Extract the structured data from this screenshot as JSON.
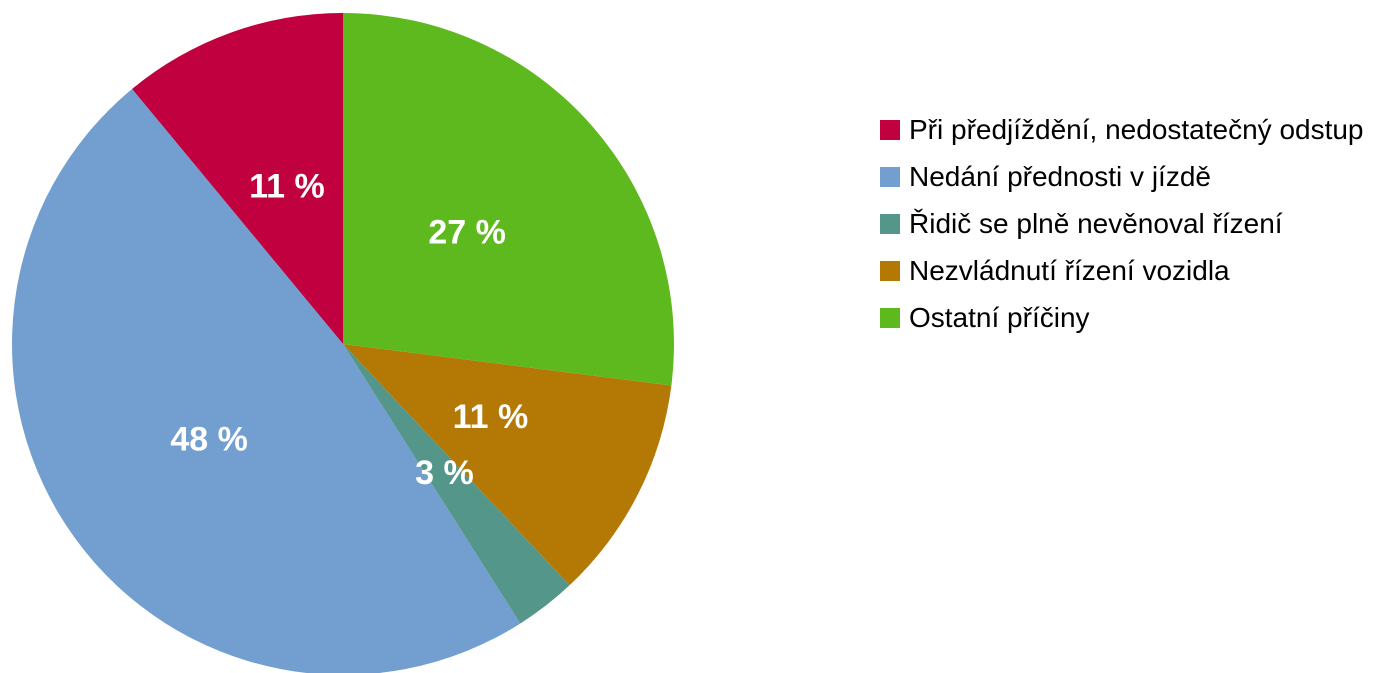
{
  "chart_data": {
    "type": "pie",
    "categories": [
      "Při předjíždění, nedostatečný odstup",
      "Nedání přednosti v jízdě",
      "Řidič se plně nevěnoval řízení",
      "Nezvládnutí řízení vozidla",
      "Ostatní příčiny"
    ],
    "values": [
      11,
      48,
      3,
      11,
      27
    ],
    "value_labels": [
      "11 %",
      "48 %",
      "3 %",
      "11 %",
      "27 %"
    ],
    "colors": [
      "#c1003f",
      "#729fcf",
      "#55968b",
      "#b47804",
      "#5eb91e"
    ],
    "legend": "right"
  }
}
